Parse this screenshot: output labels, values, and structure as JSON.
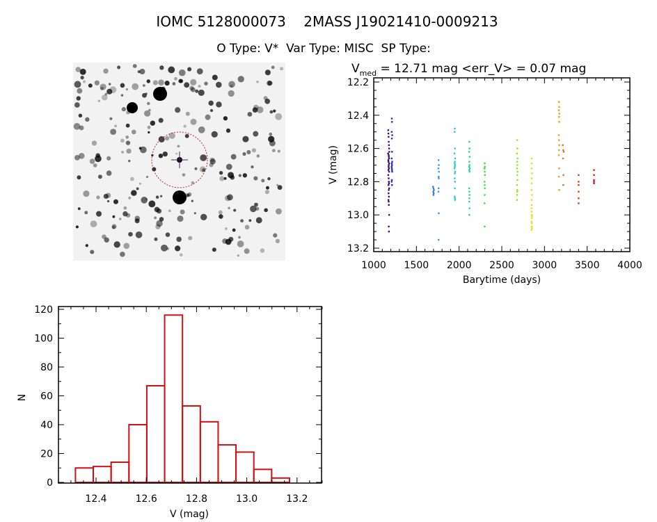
{
  "header": {
    "title": "IOMC 5128000073    2MASS J19021410-0009213",
    "subtitle": "O Type: V*  Var Type: MISC  SP Type:"
  },
  "finder_image": {
    "description_icon": "star-field-finder-chart",
    "marker_color": "#c02020",
    "crosshair_color": "#502060"
  },
  "chart_data": [
    {
      "type": "scatter",
      "title_prefix": "V",
      "title_sub": "med",
      "title_rest": " = 12.71 mag <err_V> = 0.07 mag",
      "xlabel": "Barytime (days)",
      "ylabel": "V (mag)",
      "xlim": [
        1000,
        4000
      ],
      "ylim": [
        13.22,
        12.18
      ],
      "y_inverted": true,
      "xticks": [
        "1000",
        "1500",
        "2000",
        "2500",
        "3000",
        "3500",
        "4000"
      ],
      "yticks": [
        "12.2",
        "12.4",
        "12.6",
        "12.8",
        "13.0",
        "13.2"
      ],
      "series": [
        {
          "color": "#3a1470",
          "x": [
            1170,
            1172,
            1174,
            1176,
            1178,
            1180,
            1182,
            1168,
            1175,
            1177,
            1179,
            1171,
            1173,
            1181,
            1176,
            1174,
            1178,
            1172,
            1180,
            1170,
            1175,
            1177,
            1179,
            1173,
            1181,
            1176,
            1174,
            1178,
            1172,
            1175,
            1177,
            1180,
            1176,
            1178
          ],
          "y": [
            12.49,
            12.51,
            12.53,
            12.56,
            12.58,
            12.6,
            12.62,
            12.63,
            12.64,
            12.65,
            12.66,
            12.67,
            12.68,
            12.69,
            12.7,
            12.71,
            12.72,
            12.73,
            12.74,
            12.76,
            12.78,
            12.8,
            12.81,
            12.82,
            12.84,
            12.85,
            12.87,
            12.89,
            12.91,
            12.92,
            12.94,
            13.0,
            13.07,
            13.1
          ]
        },
        {
          "color": "#2030c0",
          "x": [
            1212,
            1214,
            1210,
            1216,
            1212,
            1214,
            1210,
            1216,
            1212,
            1214,
            1210,
            1212,
            1214,
            1216,
            1212,
            1210,
            1214
          ],
          "y": [
            12.42,
            12.44,
            12.5,
            12.52,
            12.54,
            12.62,
            12.66,
            12.68,
            12.69,
            12.7,
            12.71,
            12.72,
            12.73,
            12.74,
            12.79,
            12.8,
            12.82
          ]
        },
        {
          "color": "#3080d0",
          "x": [
            1695,
            1700,
            1705,
            1698,
            1702,
            1700
          ],
          "y": [
            12.83,
            12.84,
            12.85,
            12.86,
            12.87,
            12.88
          ]
        },
        {
          "color": "#30a0e0",
          "x": [
            1760,
            1762,
            1758,
            1764,
            1760,
            1762,
            1760,
            1758,
            1762,
            1760
          ],
          "y": [
            12.67,
            12.7,
            12.72,
            12.74,
            12.77,
            12.78,
            12.84,
            12.86,
            12.99,
            13.15
          ]
        },
        {
          "color": "#20d0d0",
          "x": [
            1950,
            1948,
            1952,
            1946,
            1954,
            1950,
            1948,
            1952,
            1950,
            1946,
            1954,
            1950,
            1948,
            1952,
            1950,
            1948,
            1950,
            1952
          ],
          "y": [
            12.48,
            12.5,
            12.6,
            12.63,
            12.66,
            12.68,
            12.69,
            12.7,
            12.71,
            12.72,
            12.74,
            12.75,
            12.78,
            12.8,
            12.84,
            12.89,
            12.9,
            12.91
          ]
        },
        {
          "color": "#20d890",
          "x": [
            2120,
            2122,
            2118,
            2124,
            2120,
            2122,
            2118,
            2124,
            2120,
            2122,
            2118,
            2120,
            2122,
            2120,
            2118,
            2122,
            2120
          ],
          "y": [
            12.56,
            12.6,
            12.62,
            12.65,
            12.68,
            12.7,
            12.71,
            12.72,
            12.73,
            12.74,
            12.84,
            12.86,
            12.88,
            12.9,
            12.92,
            12.96,
            13.0
          ]
        },
        {
          "color": "#40e040",
          "x": [
            2300,
            2302,
            2298,
            2300,
            2302,
            2298,
            2300,
            2302,
            2300,
            2298,
            2300
          ],
          "y": [
            12.69,
            12.71,
            12.72,
            12.74,
            12.76,
            12.8,
            12.82,
            12.84,
            12.88,
            12.93,
            13.07
          ]
        },
        {
          "color": "#a0e030",
          "x": [
            2680,
            2682,
            2678,
            2684,
            2680,
            2682,
            2678,
            2684,
            2680,
            2682,
            2678,
            2680,
            2682,
            2680,
            2678
          ],
          "y": [
            12.55,
            12.6,
            12.63,
            12.66,
            12.68,
            12.7,
            12.72,
            12.74,
            12.76,
            12.79,
            12.82,
            12.85,
            12.86,
            12.88,
            12.91
          ]
        },
        {
          "color": "#e8e020",
          "x": [
            2850,
            2852,
            2848,
            2854,
            2850,
            2852,
            2848,
            2854,
            2850,
            2852,
            2848,
            2850,
            2852,
            2854,
            2850,
            2848,
            2852,
            2850,
            2854,
            2848
          ],
          "y": [
            12.66,
            12.69,
            12.72,
            12.75,
            12.78,
            12.81,
            12.85,
            12.88,
            12.91,
            12.94,
            12.96,
            12.98,
            13.0,
            13.01,
            13.02,
            13.04,
            13.05,
            13.07,
            13.08,
            13.09
          ]
        },
        {
          "color": "#e8a020",
          "x": [
            3170,
            3172,
            3168,
            3174,
            3170,
            3172,
            3168,
            3170,
            3172,
            3170,
            3168,
            3172,
            3170,
            3172
          ],
          "y": [
            12.32,
            12.35,
            12.37,
            12.39,
            12.41,
            12.44,
            12.52,
            12.55,
            12.58,
            12.61,
            12.64,
            12.72,
            12.77,
            12.85
          ]
        },
        {
          "color": "#e07020",
          "x": [
            3215,
            3220,
            3225,
            3218,
            3222,
            3220
          ],
          "y": [
            12.58,
            12.61,
            12.62,
            12.66,
            12.76,
            12.82
          ]
        },
        {
          "color": "#d04020",
          "x": [
            3400,
            3400,
            3400,
            3400,
            3400,
            3400
          ],
          "y": [
            12.76,
            12.8,
            12.82,
            12.86,
            12.9,
            12.93
          ]
        },
        {
          "color": "#c02020",
          "x": [
            3580,
            3580,
            3580,
            3580,
            3580
          ],
          "y": [
            12.73,
            12.76,
            12.79,
            12.8,
            12.81
          ]
        }
      ]
    },
    {
      "type": "bar",
      "style": "histogram-step",
      "xlabel": "V (mag)",
      "ylabel": "N",
      "xlim": [
        12.25,
        13.3
      ],
      "ylim": [
        0,
        122
      ],
      "xticks": [
        "12.4",
        "12.6",
        "12.8",
        "13.0",
        "13.2"
      ],
      "yticks": [
        "0",
        "20",
        "40",
        "60",
        "80",
        "100",
        "120"
      ],
      "bin_start": 12.318,
      "bin_width": 0.071,
      "values": [
        10,
        11,
        14,
        40,
        67,
        116,
        53,
        42,
        26,
        21,
        9,
        3
      ],
      "color": "#d01010"
    }
  ]
}
